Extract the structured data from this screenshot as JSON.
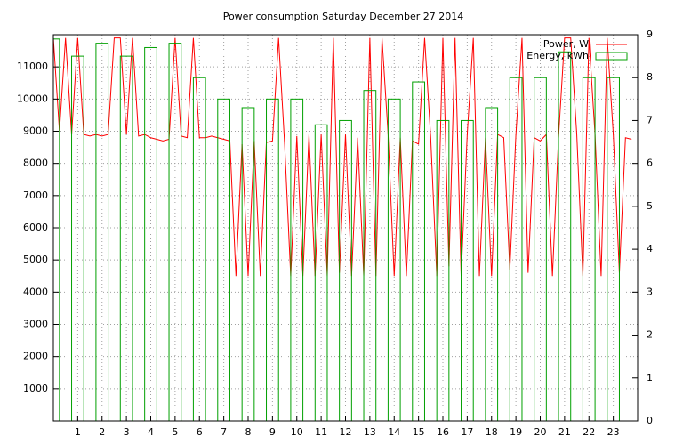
{
  "chart_data": {
    "type": "line+bar",
    "title": "Power consumption Saturday December 27 2014",
    "xlim": [
      0,
      24
    ],
    "xticks": [
      1,
      2,
      3,
      4,
      5,
      6,
      7,
      8,
      9,
      10,
      11,
      12,
      13,
      14,
      15,
      16,
      17,
      18,
      19,
      20,
      21,
      22,
      23
    ],
    "ylim": [
      0,
      12000
    ],
    "yticks": [
      1000,
      2000,
      3000,
      4000,
      5000,
      6000,
      7000,
      8000,
      9000,
      10000,
      11000
    ],
    "y2lim": [
      0,
      9
    ],
    "y2ticks": [
      0,
      1,
      2,
      3,
      4,
      5,
      6,
      7,
      8,
      9
    ],
    "grid": true,
    "legend": "top-right",
    "series": [
      {
        "name": "Power, W",
        "color": "#ff0000",
        "kind": "line",
        "x": [
          0,
          0.25,
          0.5,
          0.75,
          1,
          1.25,
          1.5,
          1.75,
          2,
          2.25,
          2.5,
          2.75,
          3,
          3.25,
          3.5,
          3.75,
          4,
          4.25,
          4.5,
          4.75,
          5,
          5.25,
          5.5,
          5.75,
          6,
          6.25,
          6.5,
          6.75,
          7,
          7.25,
          7.5,
          7.75,
          8,
          8.25,
          8.5,
          8.75,
          9,
          9.25,
          9.5,
          9.75,
          10,
          10.25,
          10.5,
          10.75,
          11,
          11.25,
          11.5,
          11.75,
          12,
          12.25,
          12.5,
          12.75,
          13,
          13.25,
          13.5,
          13.75,
          14,
          14.25,
          14.5,
          14.75,
          15,
          15.25,
          15.5,
          15.75,
          16,
          16.25,
          16.5,
          16.75,
          17,
          17.25,
          17.5,
          17.75,
          18,
          18.25,
          18.5,
          18.75,
          19,
          19.25,
          19.5,
          19.75,
          20,
          20.25,
          20.5,
          20.75,
          21,
          21.25,
          21.5,
          21.75,
          22,
          22.25,
          22.5,
          22.75,
          23,
          23.25,
          23.5,
          23.75
        ],
        "values": [
          11900,
          9000,
          11900,
          8900,
          11900,
          8900,
          8850,
          8900,
          8850,
          8900,
          11900,
          11900,
          8900,
          11900,
          8850,
          8900,
          8800,
          8750,
          8700,
          8750,
          11900,
          8850,
          8800,
          11900,
          8800,
          8800,
          8850,
          8800,
          8750,
          8700,
          4500,
          8600,
          4500,
          8700,
          4500,
          8650,
          8700,
          11900,
          8600,
          4500,
          8850,
          4500,
          8900,
          4500,
          8900,
          4500,
          11900,
          4600,
          8900,
          4500,
          8800,
          4500,
          11900,
          4500,
          11900,
          8900,
          4500,
          8800,
          4500,
          8700,
          8600,
          11900,
          8800,
          4500,
          11900,
          4800,
          11900,
          4500,
          8900,
          11900,
          4500,
          8800,
          4500,
          8900,
          8800,
          4700,
          8900,
          11900,
          4600,
          8800,
          8700,
          8900,
          4500,
          8800,
          11900,
          11900,
          8900,
          4500,
          11900,
          8900,
          4500,
          11900,
          8900,
          4600,
          8800,
          8750
        ]
      },
      {
        "name": "Energy, kWh",
        "color": "#00a000",
        "kind": "bar",
        "axis": "y2",
        "x": [
          0,
          1,
          2,
          3,
          4,
          5,
          6,
          7,
          8,
          9,
          10,
          11,
          12,
          13,
          14,
          15,
          16,
          17,
          18,
          19,
          20,
          21,
          22,
          23
        ],
        "values": [
          8.9,
          8.5,
          8.8,
          8.5,
          8.7,
          8.8,
          8.0,
          7.5,
          7.3,
          7.5,
          7.5,
          6.9,
          7.0,
          7.7,
          7.5,
          7.9,
          7.0,
          7.0,
          7.3,
          8.0,
          8.0,
          8.6,
          8.0,
          8.0
        ]
      }
    ]
  }
}
